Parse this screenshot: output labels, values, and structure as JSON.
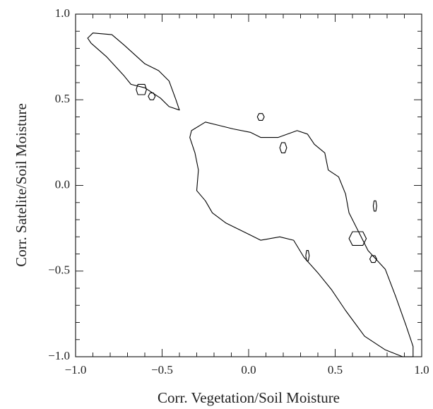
{
  "chart_data": {
    "type": "contour",
    "xlabel": "Corr. Vegetation/Soil Moisture",
    "ylabel": "Corr. Satelite/Soil Moisture",
    "xlim": [
      -1.0,
      1.0
    ],
    "ylim": [
      -1.0,
      1.0
    ],
    "xticks": [
      {
        "value": -1.0,
        "label": "−1.0"
      },
      {
        "value": -0.5,
        "label": "−0.5"
      },
      {
        "value": 0.0,
        "label": "0.0"
      },
      {
        "value": 0.5,
        "label": "0.5"
      },
      {
        "value": 1.0,
        "label": "1.0"
      }
    ],
    "yticks": [
      {
        "value": -1.0,
        "label": "−1.0"
      },
      {
        "value": -0.5,
        "label": "−0.5"
      },
      {
        "value": 0.0,
        "label": "0.0"
      },
      {
        "value": 0.5,
        "label": "0.5"
      },
      {
        "value": 1.0,
        "label": "1.0"
      }
    ],
    "xminorticks": [
      -0.9,
      -0.8,
      -0.7,
      -0.6,
      -0.4,
      -0.3,
      -0.2,
      -0.1,
      0.1,
      0.2,
      0.3,
      0.4,
      0.6,
      0.7,
      0.8,
      0.9
    ],
    "yminorticks": [
      -0.9,
      -0.8,
      -0.7,
      -0.6,
      -0.4,
      -0.3,
      -0.2,
      -0.1,
      0.1,
      0.2,
      0.3,
      0.4,
      0.6,
      0.7,
      0.8,
      0.9
    ],
    "color": "#000000",
    "contours": [
      {
        "x": [
          -0.93,
          -0.9,
          -0.79,
          -0.72,
          -0.6,
          -0.52,
          -0.46,
          -0.42,
          -0.4,
          -0.46,
          -0.51,
          -0.6,
          -0.68,
          -0.72,
          -0.82,
          -0.91
        ],
        "y": [
          0.86,
          0.89,
          0.88,
          0.82,
          0.71,
          0.67,
          0.61,
          0.5,
          0.44,
          0.46,
          0.51,
          0.57,
          0.59,
          0.64,
          0.75,
          0.83
        ]
      },
      {
        "x": [
          -0.33,
          -0.25,
          -0.17,
          -0.09,
          0.01,
          0.07,
          0.17,
          0.28,
          0.34,
          0.38,
          0.44,
          0.46,
          0.52,
          0.56,
          0.58,
          0.64,
          0.69,
          0.79,
          0.85,
          0.91,
          0.95,
          0.95,
          0.89,
          0.79,
          0.67,
          0.56,
          0.48,
          0.4,
          0.32,
          0.26,
          0.18,
          0.07,
          -0.01,
          -0.13,
          -0.21,
          -0.25,
          -0.3,
          -0.29,
          -0.31,
          -0.34
        ],
        "y": [
          0.32,
          0.37,
          0.35,
          0.33,
          0.31,
          0.28,
          0.28,
          0.32,
          0.3,
          0.24,
          0.19,
          0.09,
          0.05,
          -0.05,
          -0.16,
          -0.28,
          -0.38,
          -0.49,
          -0.65,
          -0.82,
          -0.94,
          -1.0,
          -1.0,
          -0.96,
          -0.88,
          -0.73,
          -0.61,
          -0.51,
          -0.42,
          -0.32,
          -0.3,
          -0.32,
          -0.28,
          -0.22,
          -0.16,
          -0.09,
          -0.03,
          0.09,
          0.19,
          0.28
        ]
      },
      {
        "x": [
          -0.59,
          -0.6,
          -0.64,
          -0.65,
          -0.64,
          -0.6
        ],
        "y": [
          0.56,
          0.59,
          0.59,
          0.56,
          0.53,
          0.53
        ]
      },
      {
        "x": [
          -0.54,
          -0.55,
          -0.57,
          -0.58,
          -0.57,
          -0.55
        ],
        "y": [
          0.52,
          0.54,
          0.54,
          0.52,
          0.5,
          0.5
        ]
      },
      {
        "x": [
          0.22,
          0.21,
          0.19,
          0.18,
          0.19,
          0.21
        ],
        "y": [
          0.22,
          0.25,
          0.25,
          0.22,
          0.19,
          0.19
        ]
      },
      {
        "x": [
          0.74,
          0.735,
          0.725,
          0.72,
          0.725,
          0.735
        ],
        "y": [
          -0.12,
          -0.09,
          -0.09,
          -0.12,
          -0.15,
          -0.15
        ]
      },
      {
        "x": [
          0.68,
          0.66,
          0.6,
          0.58,
          0.6,
          0.66
        ],
        "y": [
          -0.31,
          -0.27,
          -0.27,
          -0.31,
          -0.35,
          -0.35
        ]
      },
      {
        "x": [
          0.74,
          0.73,
          0.71,
          0.7,
          0.71,
          0.73
        ],
        "y": [
          -0.43,
          -0.41,
          -0.41,
          -0.43,
          -0.45,
          -0.45
        ]
      },
      {
        "x": [
          0.35,
          0.345,
          0.335,
          0.33,
          0.335,
          0.345
        ],
        "y": [
          -0.41,
          -0.38,
          -0.38,
          -0.41,
          -0.44,
          -0.44
        ]
      },
      {
        "x": [
          0.09,
          0.08,
          0.06,
          0.05,
          0.06,
          0.08
        ],
        "y": [
          0.4,
          0.42,
          0.42,
          0.4,
          0.38,
          0.38
        ]
      }
    ]
  }
}
